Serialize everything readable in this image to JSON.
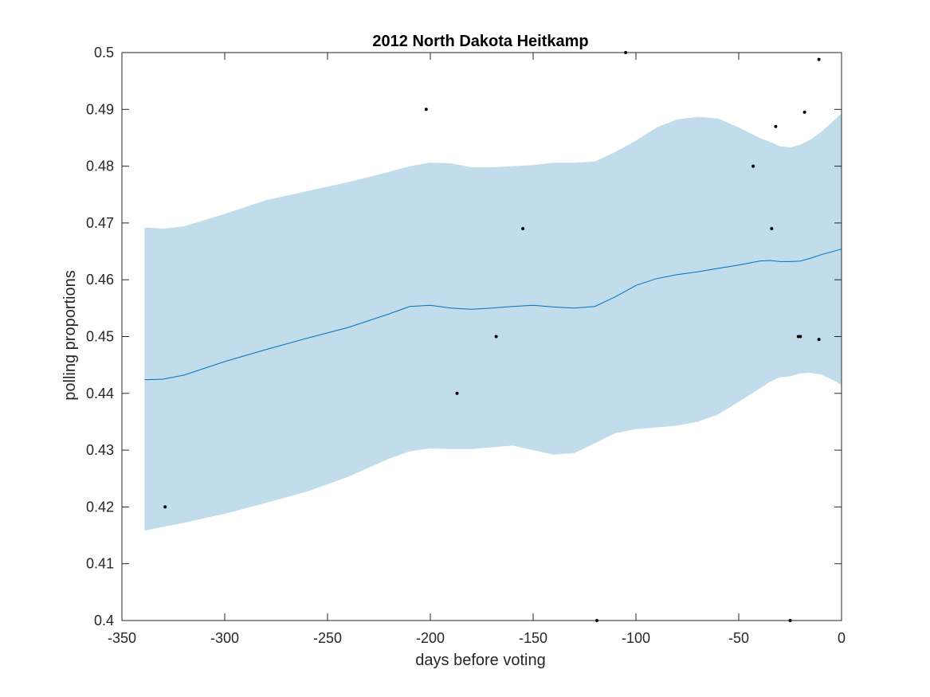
{
  "chart_data": {
    "type": "line",
    "title": "2012 North Dakota Heitkamp",
    "xlabel": "days before voting",
    "ylabel": "polling proportions",
    "xlim": [
      -350,
      0
    ],
    "ylim": [
      0.4,
      0.5
    ],
    "xticks": [
      -350,
      -300,
      -250,
      -200,
      -150,
      -100,
      -50,
      0
    ],
    "xtick_labels": [
      "-350",
      "-300",
      "-250",
      "-200",
      "-150",
      "-100",
      "-50",
      "0"
    ],
    "yticks": [
      0.4,
      0.41,
      0.42,
      0.43,
      0.44,
      0.45,
      0.46,
      0.47,
      0.48,
      0.49,
      0.5
    ],
    "ytick_labels": [
      "0.4",
      "0.41",
      "0.42",
      "0.43",
      "0.44",
      "0.45",
      "0.46",
      "0.47",
      "0.48",
      "0.49",
      "0.5"
    ],
    "grid": false,
    "colors": {
      "band": "#c1dcea",
      "line": "#0072bd",
      "points": "#000000",
      "axes": "#262626"
    },
    "series": [
      {
        "kind": "band",
        "x": [
          -339,
          -330,
          -320,
          -300,
          -280,
          -260,
          -240,
          -220,
          -210,
          -200,
          -190,
          -180,
          -170,
          -160,
          -150,
          -140,
          -130,
          -120,
          -110,
          -100,
          -90,
          -80,
          -70,
          -60,
          -50,
          -40,
          -35,
          -30,
          -25,
          -20,
          -15,
          -10,
          -5,
          0
        ],
        "lower": [
          0.4158,
          0.4165,
          0.4172,
          0.4188,
          0.4207,
          0.4227,
          0.4253,
          0.4285,
          0.4298,
          0.4303,
          0.4302,
          0.4302,
          0.4305,
          0.4308,
          0.43,
          0.4292,
          0.4295,
          0.4312,
          0.433,
          0.4337,
          0.434,
          0.4343,
          0.435,
          0.4363,
          0.4385,
          0.4408,
          0.442,
          0.4428,
          0.443,
          0.4435,
          0.4436,
          0.4433,
          0.4425,
          0.4415
        ],
        "upper": [
          0.4692,
          0.469,
          0.4694,
          0.4716,
          0.474,
          0.4756,
          0.4772,
          0.479,
          0.48,
          0.4806,
          0.4805,
          0.4798,
          0.4798,
          0.48,
          0.4802,
          0.4806,
          0.4806,
          0.4808,
          0.4825,
          0.4845,
          0.4868,
          0.4882,
          0.4887,
          0.4884,
          0.4868,
          0.485,
          0.4843,
          0.4835,
          0.4833,
          0.4838,
          0.4847,
          0.486,
          0.4876,
          0.4893
        ]
      },
      {
        "kind": "line",
        "x": [
          -339,
          -330,
          -320,
          -300,
          -280,
          -260,
          -240,
          -220,
          -210,
          -200,
          -190,
          -180,
          -170,
          -160,
          -150,
          -140,
          -130,
          -120,
          -110,
          -100,
          -90,
          -80,
          -70,
          -60,
          -50,
          -40,
          -35,
          -30,
          -25,
          -20,
          -15,
          -10,
          -5,
          0
        ],
        "y": [
          0.4424,
          0.4425,
          0.4432,
          0.4456,
          0.4477,
          0.4497,
          0.4516,
          0.454,
          0.4553,
          0.4555,
          0.455,
          0.4548,
          0.455,
          0.4553,
          0.4555,
          0.4552,
          0.455,
          0.4553,
          0.457,
          0.459,
          0.4602,
          0.4609,
          0.4614,
          0.462,
          0.4626,
          0.4633,
          0.4634,
          0.4632,
          0.4632,
          0.4633,
          0.4638,
          0.4644,
          0.4649,
          0.4654
        ]
      },
      {
        "kind": "scatter",
        "points": [
          [
            -329,
            0.42
          ],
          [
            -202,
            0.49
          ],
          [
            -187,
            0.44
          ],
          [
            -168,
            0.45
          ],
          [
            -155,
            0.469
          ],
          [
            -119,
            0.4
          ],
          [
            -105,
            0.5
          ],
          [
            -43,
            0.48
          ],
          [
            -34,
            0.469
          ],
          [
            -32,
            0.487
          ],
          [
            -25,
            0.4
          ],
          [
            -21,
            0.45
          ],
          [
            -20,
            0.45
          ],
          [
            -18,
            0.4895
          ],
          [
            -11,
            0.4495
          ],
          [
            -11,
            0.4988
          ]
        ]
      }
    ]
  }
}
